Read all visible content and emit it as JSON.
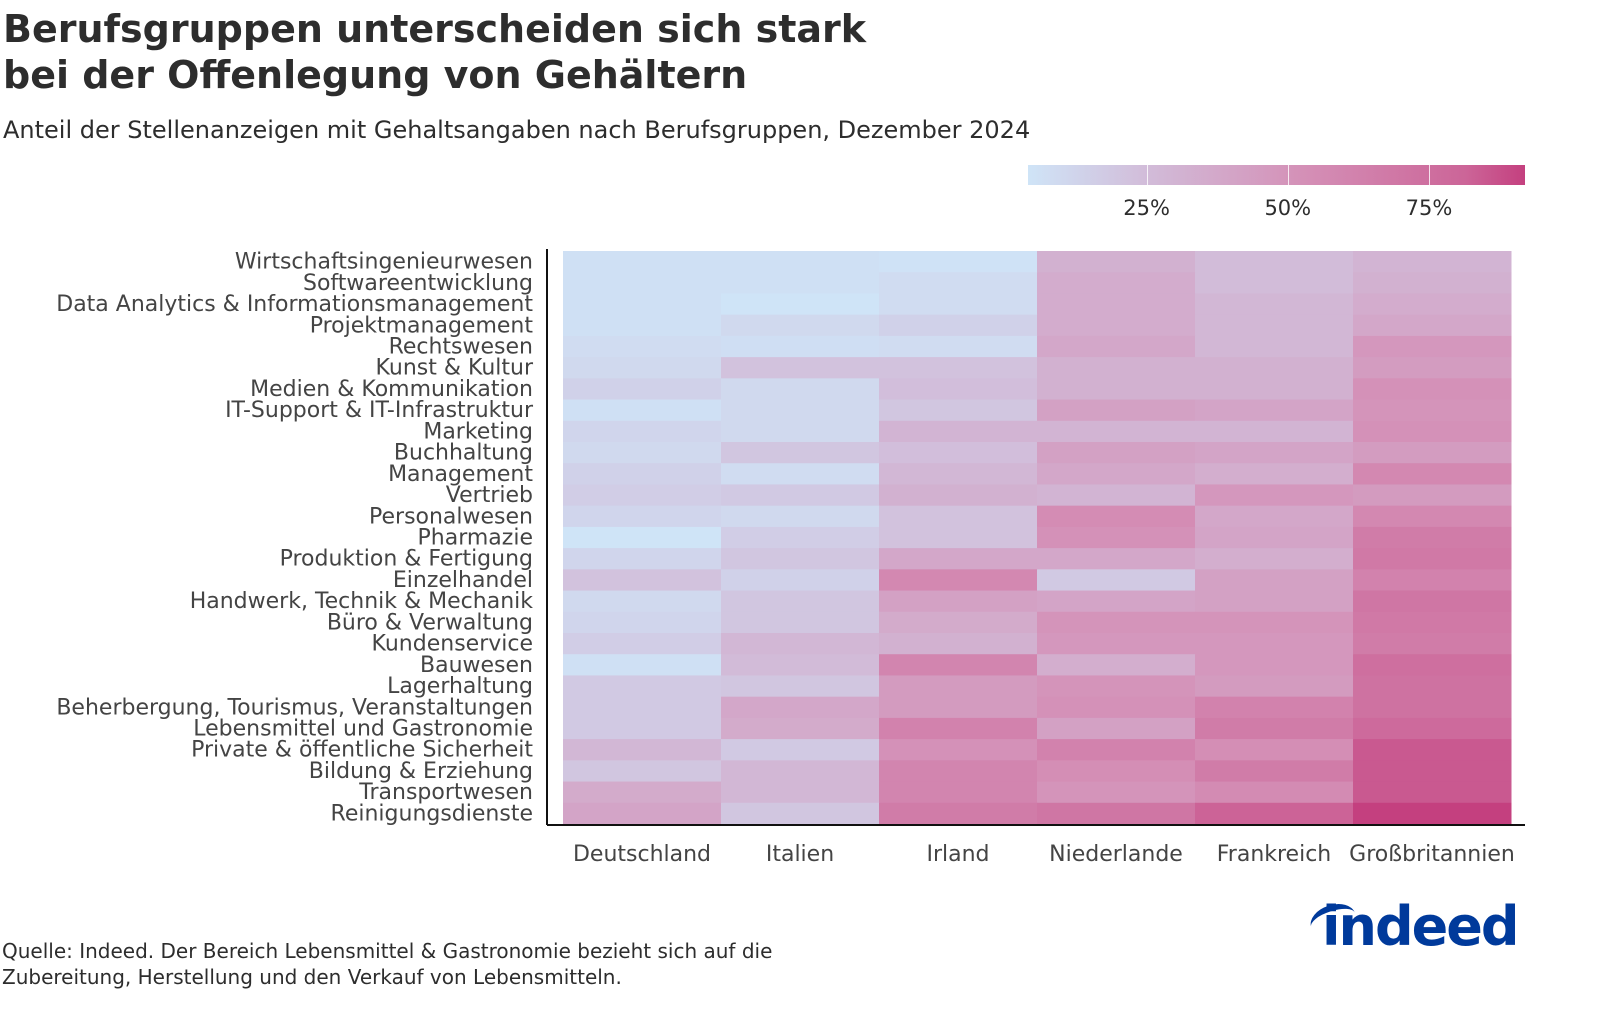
{
  "chart_data": {
    "type": "heatmap",
    "title": "Berufsgruppen unterscheiden sich stark bei der Offenlegung von Gehältern",
    "title_lines": [
      "Berufsgruppen unterscheiden sich stark",
      "bei der Offenlegung von Gehältern"
    ],
    "subtitle": "Anteil der Stellenanzeigen mit Gehaltsangaben nach Berufsgruppen, Dezember 2024",
    "x_categories": [
      "Deutschland",
      "Italien",
      "Irland",
      "Niederlande",
      "Frankreich",
      "Großbritannien"
    ],
    "y_categories": [
      "Wirtschaftsingenieurwesen",
      "Softwareentwicklung",
      "Data Analytics & Informationsmanagement",
      "Projektmanagement",
      "Rechtswesen",
      "Kunst & Kultur",
      "Medien & Kommunikation",
      "IT-Support & IT-Infrastruktur",
      "Marketing",
      "Buchhaltung",
      "Management",
      "Vertrieb",
      "Personalwesen",
      "Pharmazie",
      "Produktion & Fertigung",
      "Einzelhandel",
      "Handwerk, Technik & Mechanik",
      "Büro & Verwaltung",
      "Kundenservice",
      "Bauwesen",
      "Lagerhaltung",
      "Beherbergung, Tourismus, Veranstaltungen",
      "Lebensmittel und Gastronomie",
      "Private & öffentliche Sicherheit",
      "Bildung & Erziehung",
      "Transportwesen",
      "Reinigungsdienste"
    ],
    "values": [
      [
        6,
        6,
        5,
        32,
        25,
        30
      ],
      [
        6,
        6,
        8,
        35,
        25,
        32
      ],
      [
        6,
        4,
        8,
        35,
        28,
        35
      ],
      [
        6,
        10,
        14,
        35,
        28,
        38
      ],
      [
        8,
        7,
        8,
        38,
        28,
        48
      ],
      [
        10,
        22,
        22,
        32,
        32,
        45
      ],
      [
        14,
        10,
        24,
        32,
        32,
        52
      ],
      [
        6,
        10,
        20,
        42,
        40,
        50
      ],
      [
        12,
        10,
        30,
        30,
        30,
        52
      ],
      [
        10,
        20,
        24,
        42,
        40,
        45
      ],
      [
        14,
        8,
        28,
        38,
        34,
        58
      ],
      [
        16,
        18,
        32,
        30,
        48,
        46
      ],
      [
        12,
        10,
        22,
        55,
        38,
        58
      ],
      [
        4,
        16,
        22,
        52,
        40,
        66
      ],
      [
        12,
        20,
        38,
        38,
        34,
        68
      ],
      [
        22,
        14,
        58,
        18,
        42,
        62
      ],
      [
        10,
        20,
        42,
        40,
        42,
        70
      ],
      [
        12,
        20,
        36,
        50,
        50,
        68
      ],
      [
        16,
        28,
        32,
        48,
        48,
        66
      ],
      [
        6,
        26,
        60,
        34,
        48,
        75
      ],
      [
        18,
        20,
        46,
        50,
        46,
        73
      ],
      [
        18,
        38,
        46,
        52,
        62,
        73
      ],
      [
        18,
        36,
        62,
        42,
        66,
        78
      ],
      [
        28,
        18,
        52,
        62,
        54,
        85
      ],
      [
        20,
        28,
        60,
        54,
        66,
        85
      ],
      [
        36,
        28,
        60,
        50,
        56,
        85
      ],
      [
        40,
        20,
        66,
        70,
        82,
        92
      ]
    ],
    "value_unit": "%",
    "colorscale": {
      "min": 4,
      "max": 92,
      "stops": [
        "#cfe4f7",
        "#d2bcd9",
        "#d48fb6",
        "#cc6598",
        "#c4407f"
      ],
      "ticks": [
        25,
        50,
        75
      ],
      "tick_labels": [
        "25%",
        "50%",
        "75%"
      ]
    }
  },
  "footnote_lines": [
    "Quelle: Indeed. Der Bereich Lebensmittel & Gastronomie bezieht sich auf die",
    "Zubereitung, Herstellung und den Verkauf von Lebensmitteln."
  ],
  "logo": "indeed"
}
